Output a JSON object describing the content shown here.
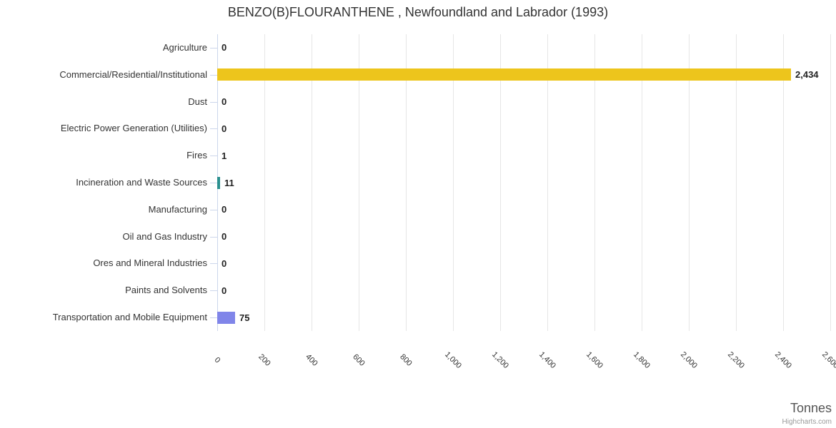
{
  "chart_data": {
    "type": "bar",
    "orientation": "horizontal",
    "title": "BENZO(B)FLOURANTHENE , Newfoundland and Labrador (1993)",
    "xlabel": "Tonnes",
    "ylabel": "",
    "legend": "none",
    "grid": "vertical",
    "categories": [
      "Agriculture",
      "Commercial/Residential/Institutional",
      "Dust",
      "Electric Power Generation (Utilities)",
      "Fires",
      "Incineration and Waste Sources",
      "Manufacturing",
      "Oil and Gas Industry",
      "Ores and Mineral Industries",
      "Paints and Solvents",
      "Transportation and Mobile Equipment"
    ],
    "values": [
      0,
      2434,
      0,
      0,
      1,
      11,
      0,
      0,
      0,
      0,
      75
    ],
    "value_labels": [
      "0",
      "2,434",
      "0",
      "0",
      "1",
      "11",
      "0",
      "0",
      "0",
      "0",
      "75"
    ],
    "bar_colors": {
      "Commercial/Residential/Institutional": "#EDC51C",
      "Incineration and Waste Sources": "#2B908F",
      "Transportation and Mobile Equipment": "#8085E9"
    },
    "xlim": [
      0,
      2600
    ],
    "xticks": [
      0,
      200,
      400,
      600,
      800,
      1000,
      1200,
      1400,
      1600,
      1800,
      2000,
      2200,
      2400,
      2600
    ],
    "xtick_labels": [
      "0",
      "200",
      "400",
      "600",
      "800",
      "1,000",
      "1,200",
      "1,400",
      "1,600",
      "1,800",
      "2,000",
      "2,200",
      "2,400",
      "2,600"
    ]
  },
  "credit": {
    "label": "Highcharts.com"
  },
  "colors": {
    "grid": "#E6E6E6",
    "axis_line": "#CCD6EB",
    "category_text": "#333333",
    "value_text": "#222222",
    "title_text": "#333333",
    "axis_title_text": "#555555",
    "credit_text": "#999999"
  }
}
